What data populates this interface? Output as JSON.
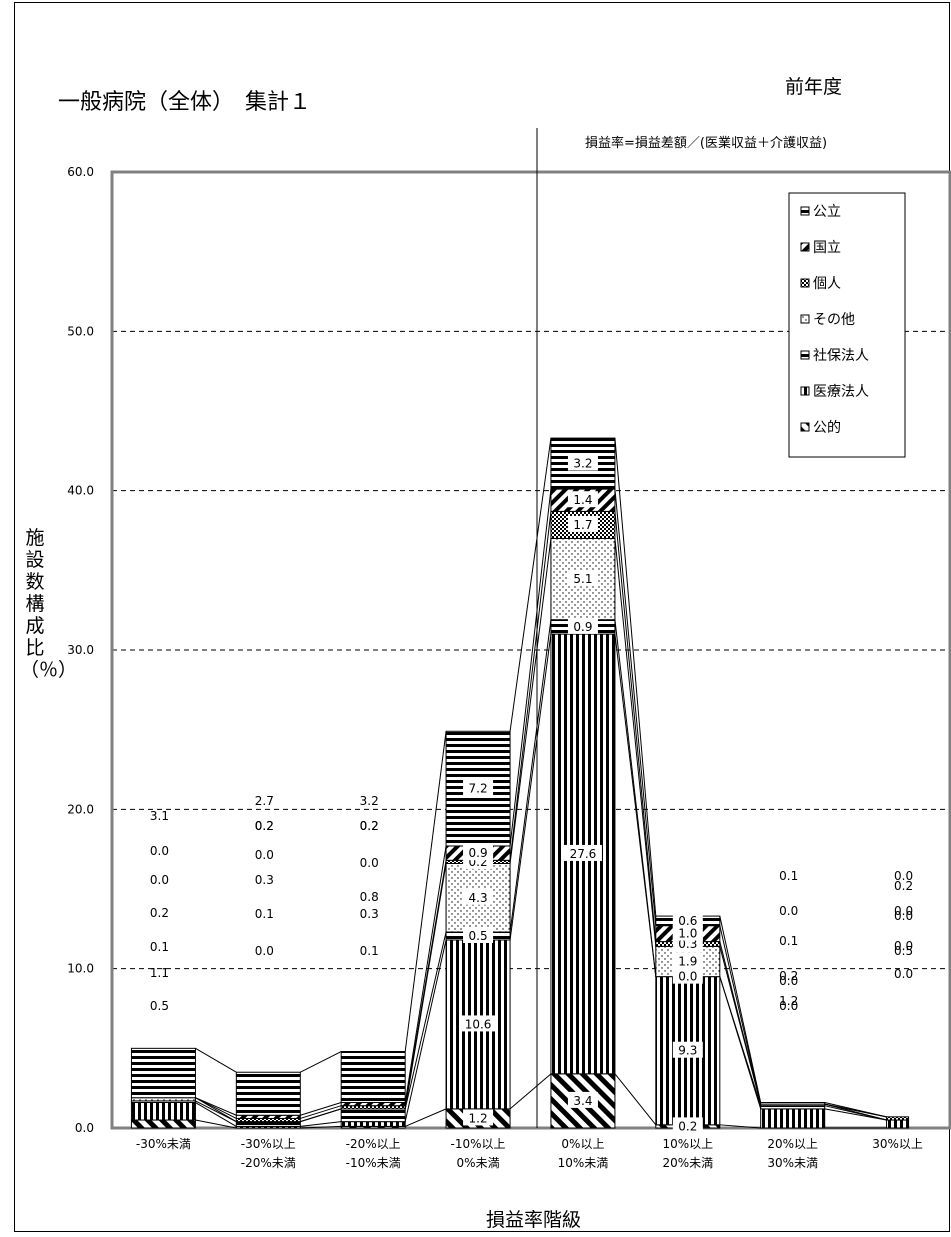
{
  "title": "一般病院（全体）　集計１",
  "subtitle": "前年度",
  "formula": "損益率=損益差額／(医業収益＋介護収益)",
  "chart_data": {
    "type": "bar",
    "stacked": true,
    "title": "一般病院（全体）　集計１",
    "xlabel": "損益率階級",
    "ylabel": "施設数構成比（％）",
    "ylim": [
      0,
      60
    ],
    "yticks": [
      "0.0",
      "10.0",
      "20.0",
      "30.0",
      "40.0",
      "50.0",
      "60.0"
    ],
    "grid": "dashed horizontal",
    "legend_position": "top-right",
    "categories": [
      [
        "-30%未満"
      ],
      [
        "-30%以上",
        "-20%未満"
      ],
      [
        "-20%以上",
        "-10%未満"
      ],
      [
        "-10%以上",
        "0%未満"
      ],
      [
        "0%以上",
        "10%未満"
      ],
      [
        "10%以上",
        "20%未満"
      ],
      [
        "20%以上",
        "30%未満"
      ],
      [
        "30%以上"
      ]
    ],
    "series": [
      {
        "name": "公的",
        "values": [
          0.5,
          0.0,
          0.1,
          1.2,
          3.4,
          0.2,
          0.0,
          0.0
        ]
      },
      {
        "name": "医療法人",
        "values": [
          1.1,
          0.1,
          0.3,
          10.6,
          27.6,
          9.3,
          1.2,
          0.5
        ]
      },
      {
        "name": "社保法人",
        "values": [
          0.1,
          0.3,
          0.8,
          0.5,
          0.9,
          0.0,
          0.2,
          0.0
        ]
      },
      {
        "name": "その他",
        "values": [
          0.2,
          0.0,
          0.0,
          4.3,
          5.1,
          1.9,
          0.1,
          0.0
        ]
      },
      {
        "name": "個人",
        "values": [
          0.0,
          0.2,
          0.2,
          0.2,
          1.7,
          0.3,
          0.0,
          0.2
        ]
      },
      {
        "name": "国立",
        "values": [
          0.0,
          0.2,
          0.2,
          0.9,
          1.4,
          1.0,
          0.0,
          0.0
        ]
      },
      {
        "name": "公立",
        "values": [
          3.1,
          2.7,
          3.2,
          7.2,
          3.2,
          0.6,
          0.1,
          0.0
        ]
      }
    ],
    "legend": [
      "公立",
      "国立",
      "個人",
      "その他",
      "社保法人",
      "医療法人",
      "公的"
    ]
  }
}
